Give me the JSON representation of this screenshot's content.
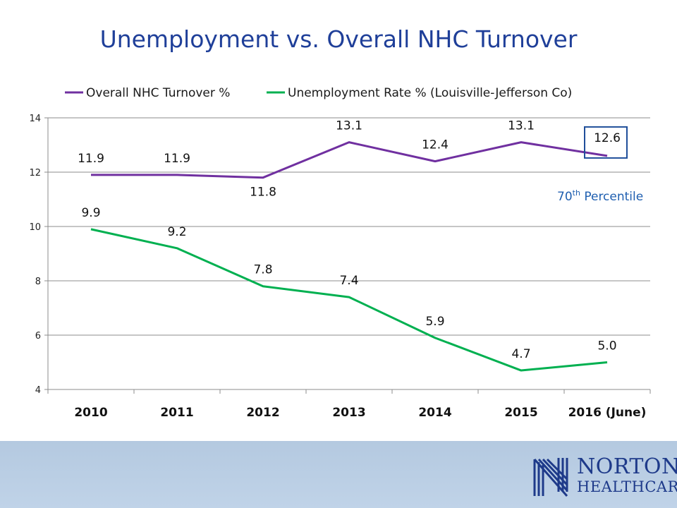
{
  "slide": {
    "title": "Unemployment vs. Overall NHC Turnover"
  },
  "annotation": {
    "text": "70",
    "superscript": "th",
    "suffix": " Percentile"
  },
  "logo": {
    "line1": "NORTON",
    "line2": "HEALTHCARE",
    "color": "#1e3a8a"
  },
  "colors": {
    "turnover": "#7030a0",
    "unemployment": "#00b050",
    "highlight_box": "#1f4e9a",
    "footer": "#b9cde4"
  },
  "chart_data": {
    "type": "line",
    "categories": [
      "2010",
      "2011",
      "2012",
      "2013",
      "2014",
      "2015",
      "2016 (June)"
    ],
    "series": [
      {
        "name": "Overall NHC Turnover %",
        "color": "#7030a0",
        "values": [
          11.9,
          11.9,
          11.8,
          13.1,
          12.4,
          13.1,
          12.6
        ],
        "labels": [
          "11.9",
          "11.9",
          "11.8",
          "13.1",
          "12.4",
          "13.1",
          "12.6"
        ]
      },
      {
        "name": "Unemployment Rate % (Louisville-Jefferson Co)",
        "color": "#00b050",
        "values": [
          9.9,
          9.2,
          7.8,
          7.4,
          5.9,
          4.7,
          5.0
        ],
        "labels": [
          "9.9",
          "9.2",
          "7.8",
          "7.4",
          "5.9",
          "4.7",
          "5.0"
        ]
      }
    ],
    "ylim": [
      4,
      14
    ],
    "yticks": [
      "4",
      "6",
      "8",
      "10",
      "12",
      "14"
    ],
    "grid": true,
    "legend": "top",
    "highlighted_point": {
      "series": 0,
      "index": 6
    }
  }
}
